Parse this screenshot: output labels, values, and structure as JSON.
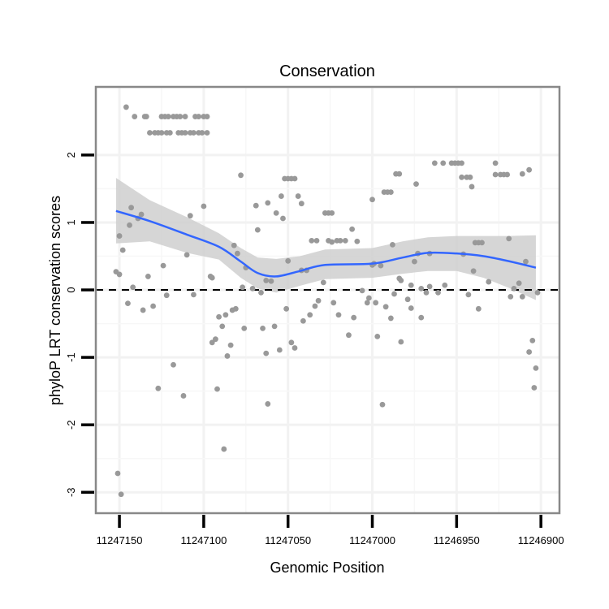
{
  "chart_data": {
    "type": "scatter",
    "title": "Conservation",
    "xlabel": "Genomic Position",
    "ylabel": "phyloP LRT conservation scores",
    "x_reversed": true,
    "xlim": [
      11247164,
      11246889
    ],
    "ylim": [
      -3.31,
      3.01
    ],
    "xticks": [
      11247150,
      11247100,
      11247050,
      11247000,
      11246950,
      11246900
    ],
    "xtick_labels": [
      "11247150",
      "11247100",
      "11247050",
      "11247000",
      "11246950",
      "11246900"
    ],
    "yticks": [
      -3,
      -2,
      -1,
      0,
      1,
      2
    ],
    "ytick_labels": [
      "-3",
      "-2",
      "-1",
      "0",
      "1",
      "2"
    ],
    "grid": true,
    "reference_line": {
      "y": 0,
      "style": "dashed"
    },
    "colors": {
      "points": "#999999",
      "smooth": "#3366ff",
      "band": "#cccccc",
      "frame": "#888888"
    },
    "points": [
      [
        11247151,
        -2.72
      ],
      [
        11247149,
        -3.03
      ],
      [
        11247152,
        0.27
      ],
      [
        11247150,
        0.23
      ],
      [
        11247150,
        0.8
      ],
      [
        11247148,
        0.59
      ],
      [
        11247146,
        2.71
      ],
      [
        11247145,
        -0.2
      ],
      [
        11247144,
        0.96
      ],
      [
        11247143,
        1.22
      ],
      [
        11247142,
        0.04
      ],
      [
        11247139,
        1.06
      ],
      [
        11247137,
        1.12
      ],
      [
        11247136,
        -0.3
      ],
      [
        11247133,
        0.2
      ],
      [
        11247130,
        -0.24
      ],
      [
        11247127,
        -1.46
      ],
      [
        11247124,
        0.36
      ],
      [
        11247122,
        -0.08
      ],
      [
        11247118,
        -1.11
      ],
      [
        11247112,
        -1.57
      ],
      [
        11247110,
        0.52
      ],
      [
        11247108,
        1.1
      ],
      [
        11247106,
        -0.07
      ],
      [
        11247100,
        1.24
      ],
      [
        11247096,
        0.2
      ],
      [
        11247095,
        0.18
      ],
      [
        11247095,
        -0.78
      ],
      [
        11247093,
        -0.73
      ],
      [
        11247092,
        -1.47
      ],
      [
        11247091,
        -0.4
      ],
      [
        11247089,
        -0.54
      ],
      [
        11247088,
        -2.36
      ],
      [
        11247087,
        -0.37
      ],
      [
        11247086,
        -0.98
      ],
      [
        11247084,
        -0.82
      ],
      [
        11247083,
        -0.3
      ],
      [
        11247081,
        -0.28
      ],
      [
        11247082,
        0.66
      ],
      [
        11247080,
        0.54
      ],
      [
        11247078,
        1.7
      ],
      [
        11247077,
        0.04
      ],
      [
        11247076,
        -0.57
      ],
      [
        11247075,
        0.33
      ],
      [
        11247071,
        0.02
      ],
      [
        11247069,
        1.25
      ],
      [
        11247068,
        0.89
      ],
      [
        11247066,
        -0.04
      ],
      [
        11247065,
        -0.57
      ],
      [
        11247063,
        0.14
      ],
      [
        11247063,
        -0.94
      ],
      [
        11247062,
        -1.69
      ],
      [
        11247062,
        1.29
      ],
      [
        11247060,
        0.13
      ],
      [
        11247058,
        -0.54
      ],
      [
        11247057,
        1.14
      ],
      [
        11247055,
        -0.89
      ],
      [
        11247054,
        1.39
      ],
      [
        11247053,
        1.06
      ],
      [
        11247052,
        1.65
      ],
      [
        11247050,
        1.65
      ],
      [
        11247048,
        1.65
      ],
      [
        11247046,
        1.65
      ],
      [
        11247051,
        -0.28
      ],
      [
        11247050,
        0.43
      ],
      [
        11247048,
        -0.78
      ],
      [
        11247046,
        -0.86
      ],
      [
        11247044,
        1.39
      ],
      [
        11247042,
        1.28
      ],
      [
        11247042,
        0.29
      ],
      [
        11247041,
        -0.46
      ],
      [
        11247039,
        0.29
      ],
      [
        11247037,
        -0.37
      ],
      [
        11247036,
        0.73
      ],
      [
        11247034,
        -0.24
      ],
      [
        11247033,
        0.73
      ],
      [
        11247032,
        -0.16
      ],
      [
        11247029,
        0.11
      ],
      [
        11247028,
        1.14
      ],
      [
        11247026,
        1.14
      ],
      [
        11247024,
        1.14
      ],
      [
        11247026,
        0.73
      ],
      [
        11247024,
        0.71
      ],
      [
        11247023,
        -0.19
      ],
      [
        11247021,
        0.73
      ],
      [
        11247020,
        -0.37
      ],
      [
        11247019,
        0.73
      ],
      [
        11247016,
        0.73
      ],
      [
        11247014,
        -0.67
      ],
      [
        11247012,
        0.9
      ],
      [
        11247011,
        -0.41
      ],
      [
        11247009,
        0.72
      ],
      [
        11247006,
        -0.01
      ],
      [
        11247003,
        -0.19
      ],
      [
        11247002,
        -0.12
      ],
      [
        11247000,
        0.37
      ],
      [
        11246999,
        0.39
      ],
      [
        11247000,
        1.34
      ],
      [
        11246998,
        -0.19
      ],
      [
        11246997,
        -0.69
      ],
      [
        11246995,
        0.36
      ],
      [
        11246994,
        -1.7
      ],
      [
        11246993,
        1.45
      ],
      [
        11246991,
        1.45
      ],
      [
        11246989,
        1.45
      ],
      [
        11246992,
        -0.25
      ],
      [
        11246989,
        -0.42
      ],
      [
        11246988,
        0.67
      ],
      [
        11246987,
        -0.06
      ],
      [
        11246986,
        1.72
      ],
      [
        11246984,
        1.72
      ],
      [
        11246984,
        0.17
      ],
      [
        11246983,
        -0.77
      ],
      [
        11246983,
        0.14
      ],
      [
        11246979,
        -0.14
      ],
      [
        11246977,
        0.07
      ],
      [
        11246977,
        -0.27
      ],
      [
        11246975,
        0.42
      ],
      [
        11246974,
        1.57
      ],
      [
        11246973,
        0.54
      ],
      [
        11246971,
        -0.41
      ],
      [
        11246971,
        0.02
      ],
      [
        11246968,
        -0.04
      ],
      [
        11246966,
        0.05
      ],
      [
        11246966,
        0.54
      ],
      [
        11246963,
        1.88
      ],
      [
        11246961,
        -0.04
      ],
      [
        11246958,
        1.88
      ],
      [
        11246957,
        0.07
      ],
      [
        11246953,
        1.88
      ],
      [
        11246951,
        1.88
      ],
      [
        11246949,
        1.88
      ],
      [
        11246947,
        1.88
      ],
      [
        11246947,
        1.67
      ],
      [
        11246944,
        1.67
      ],
      [
        11246942,
        1.67
      ],
      [
        11246941,
        1.53
      ],
      [
        11246946,
        0.53
      ],
      [
        11246943,
        -0.07
      ],
      [
        11246940,
        0.28
      ],
      [
        11246939,
        0.7
      ],
      [
        11246937,
        0.7
      ],
      [
        11246935,
        0.7
      ],
      [
        11246937,
        -0.28
      ],
      [
        11246931,
        0.12
      ],
      [
        11246927,
        1.88
      ],
      [
        11246927,
        1.71
      ],
      [
        11246924,
        1.71
      ],
      [
        11246922,
        1.71
      ],
      [
        11246920,
        1.71
      ],
      [
        11246919,
        0.76
      ],
      [
        11246916,
        0.02
      ],
      [
        11246918,
        -0.1
      ],
      [
        11246913,
        0.1
      ],
      [
        11246911,
        1.72
      ],
      [
        11246909,
        0.42
      ],
      [
        11246911,
        -0.1
      ],
      [
        11246907,
        1.78
      ],
      [
        11246907,
        -0.92
      ],
      [
        11246905,
        -0.75
      ],
      [
        11246904,
        -1.45
      ],
      [
        11246903,
        -1.16
      ],
      [
        11246902,
        -0.04
      ],
      [
        11247141,
        2.57
      ],
      [
        11247135,
        2.57
      ],
      [
        11247134,
        2.57
      ],
      [
        11247125,
        2.57
      ],
      [
        11247123,
        2.57
      ],
      [
        11247121,
        2.57
      ],
      [
        11247118,
        2.57
      ],
      [
        11247116,
        2.57
      ],
      [
        11247114,
        2.57
      ],
      [
        11247111,
        2.57
      ],
      [
        11247105,
        2.57
      ],
      [
        11247103,
        2.57
      ],
      [
        11247100,
        2.57
      ],
      [
        11247098,
        2.57
      ],
      [
        11247132,
        2.33
      ],
      [
        11247129,
        2.33
      ],
      [
        11247127,
        2.33
      ],
      [
        11247125,
        2.33
      ],
      [
        11247122,
        2.33
      ],
      [
        11247120,
        2.33
      ],
      [
        11247115,
        2.33
      ],
      [
        11247113,
        2.33
      ],
      [
        11247111,
        2.33
      ],
      [
        11247108,
        2.33
      ],
      [
        11247106,
        2.33
      ],
      [
        11247103,
        2.33
      ],
      [
        11247101,
        2.33
      ],
      [
        11247098,
        2.33
      ]
    ],
    "smooth": {
      "x": [
        11247152,
        11247132,
        11247110,
        11247091,
        11247078,
        11247068,
        11247057,
        11247043,
        11247028,
        11247000,
        11246982,
        11246967,
        11246950,
        11246934,
        11246918,
        11246903
      ],
      "fit": [
        1.17,
        1.02,
        0.82,
        0.64,
        0.42,
        0.25,
        0.2,
        0.28,
        0.37,
        0.39,
        0.48,
        0.55,
        0.54,
        0.5,
        0.42,
        0.33
      ],
      "lower": [
        0.69,
        0.72,
        0.55,
        0.45,
        0.18,
        0.02,
        -0.04,
        0.06,
        0.16,
        0.18,
        0.24,
        0.28,
        0.28,
        0.18,
        0.02,
        -0.15
      ],
      "upper": [
        1.66,
        1.33,
        1.08,
        0.84,
        0.62,
        0.48,
        0.46,
        0.5,
        0.6,
        0.62,
        0.72,
        0.78,
        0.8,
        0.8,
        0.8,
        0.81
      ]
    }
  }
}
